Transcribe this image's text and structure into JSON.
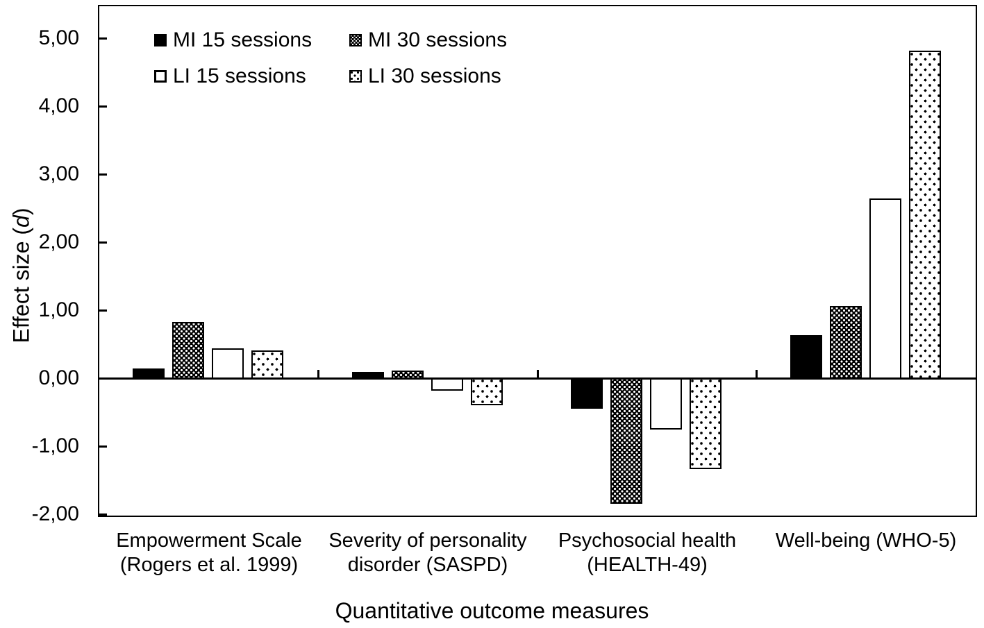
{
  "chart_data": {
    "type": "bar",
    "title": "",
    "xlabel": "Quantitative outcome measures",
    "ylabel": "Effect size (d)",
    "ylabel_parts": {
      "prefix": "Effect size (",
      "italic_var": "d",
      "suffix": ")"
    },
    "categories": [
      "Empowerment Scale (Rogers et al. 1999)",
      "Severity of personality disorder (SASPD)",
      "Psychosocial health (HEALTH-49)",
      "Well-being (WHO-5)"
    ],
    "category_lines": [
      [
        "Empowerment Scale",
        "(Rogers et al. 1999)"
      ],
      [
        "Severity of personality",
        "disorder (SASPD)"
      ],
      [
        "Psychosocial health",
        "(HEALTH-49)"
      ],
      [
        "Well-being (WHO-5)",
        ""
      ]
    ],
    "series": [
      {
        "name": "MI 15 sessions",
        "pattern": "solid",
        "values": [
          0.16,
          0.11,
          -0.43,
          0.65
        ]
      },
      {
        "name": "MI 30 sessions",
        "pattern": "checker",
        "values": [
          0.85,
          0.13,
          -1.83,
          1.08
        ]
      },
      {
        "name": "LI 15 sessions",
        "pattern": "outline",
        "values": [
          0.46,
          -0.16,
          -0.73,
          2.66
        ]
      },
      {
        "name": "LI 30 sessions",
        "pattern": "dots",
        "values": [
          0.43,
          -0.38,
          -1.32,
          4.84
        ]
      }
    ],
    "y_ticks": [
      {
        "label": "5,00",
        "value": 5
      },
      {
        "label": "4,00",
        "value": 4
      },
      {
        "label": "3,00",
        "value": 3
      },
      {
        "label": "2,00",
        "value": 2
      },
      {
        "label": "1,00",
        "value": 1
      },
      {
        "label": "0,00",
        "value": 0
      },
      {
        "label": "-1,00",
        "value": -1
      },
      {
        "label": "-2,00",
        "value": -2
      }
    ],
    "ylim": [
      -2.05,
      5.47
    ],
    "grid": false,
    "legend_position": "top-left-inside"
  },
  "colors": {
    "ink": "#000000",
    "background": "#ffffff"
  }
}
